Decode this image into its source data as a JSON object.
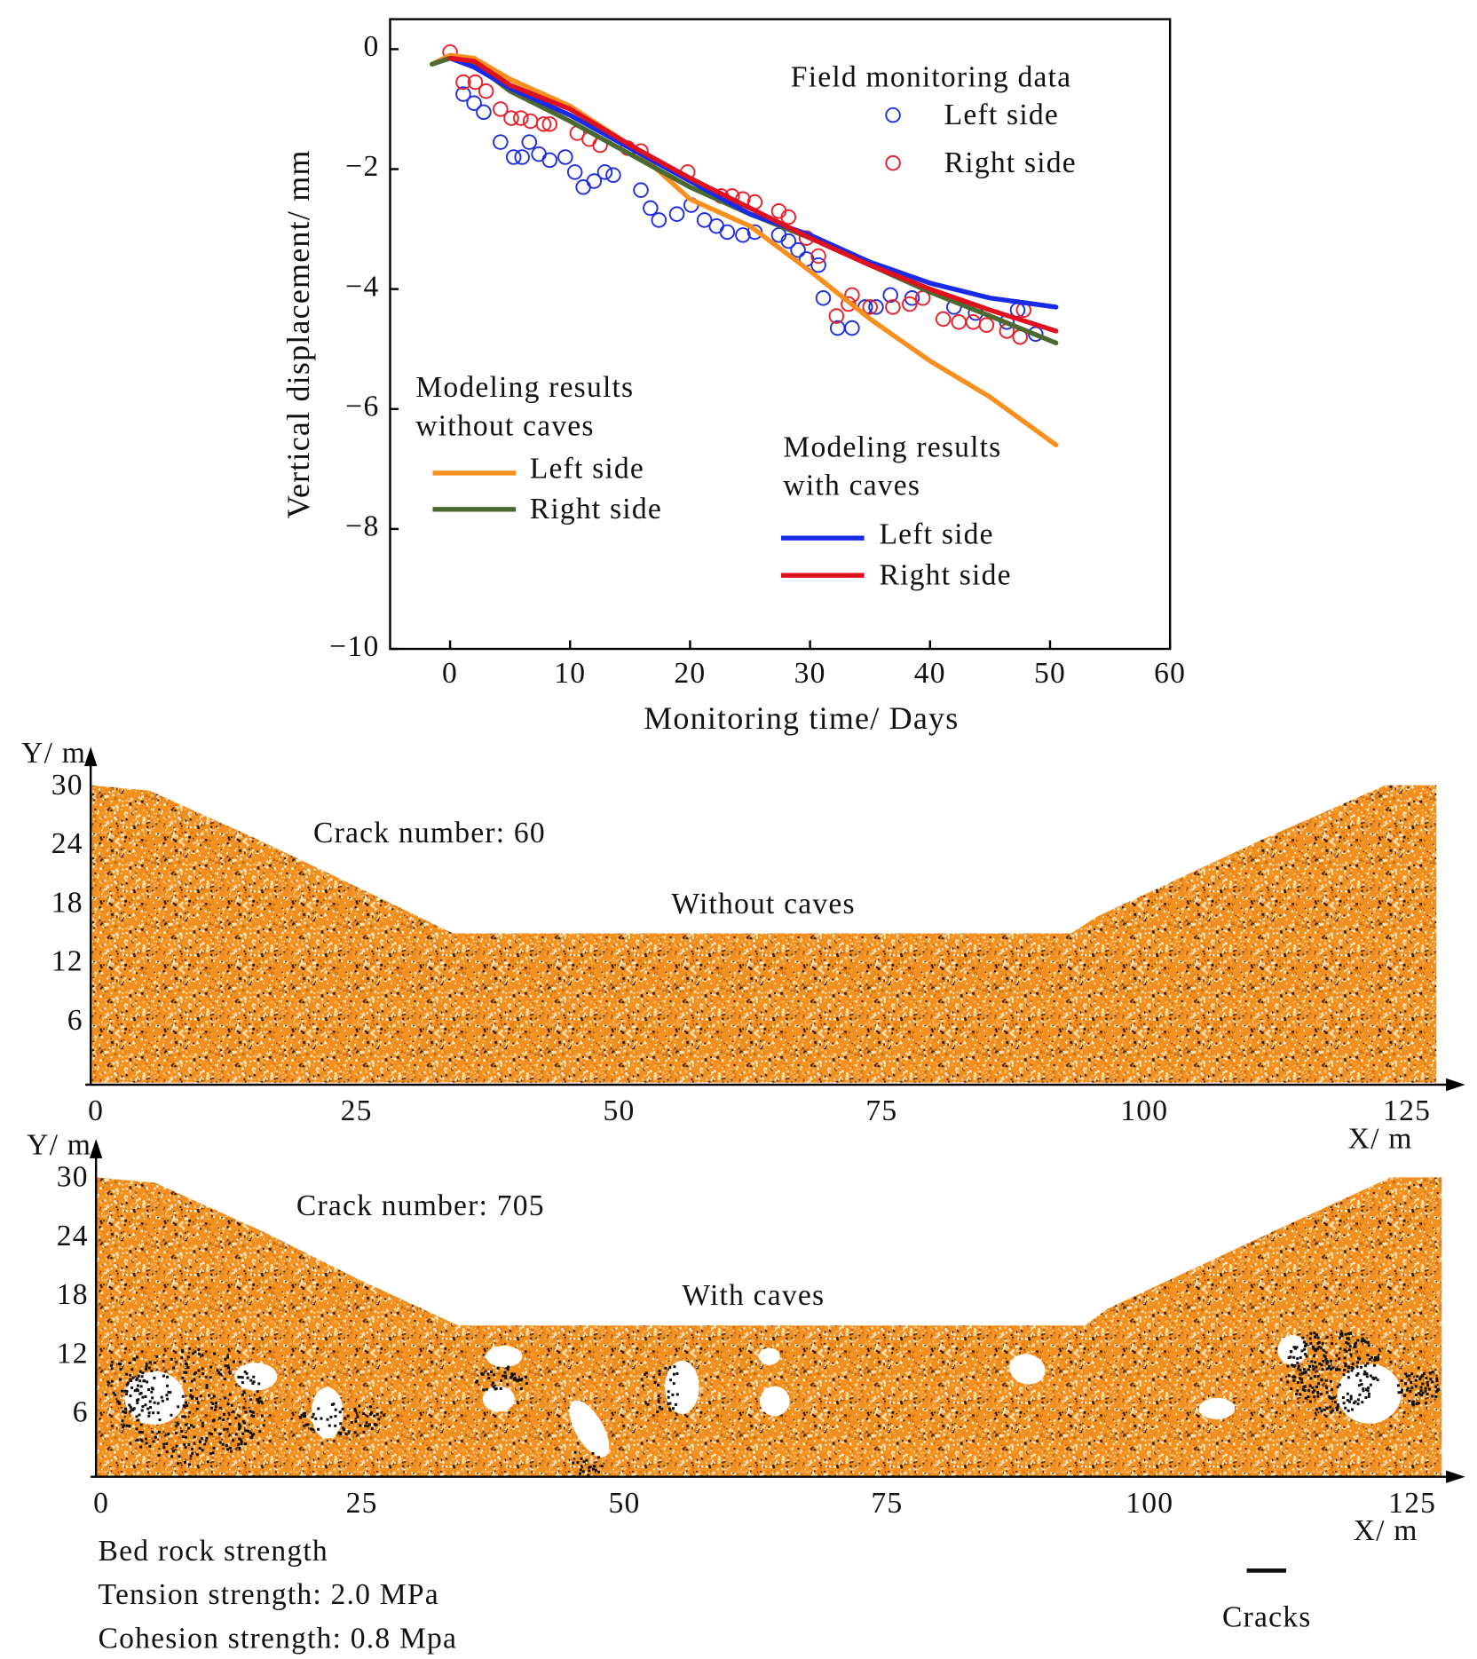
{
  "chart_data": [
    {
      "type": "line",
      "xlabel": "Monitoring time/ Days",
      "ylabel": "Vertical displacement/ mm",
      "xlim": [
        -5,
        60
      ],
      "xticks": [
        0,
        10,
        20,
        30,
        40,
        50,
        60
      ],
      "ylim": [
        -10,
        0.5
      ],
      "yticks": [
        {
          "value": -10,
          "label": "−10"
        },
        {
          "value": -8,
          "label": "−8"
        },
        {
          "value": -6,
          "label": "−6"
        },
        {
          "value": -4,
          "label": "−4"
        },
        {
          "value": -2,
          "label": "−2"
        },
        0
      ],
      "x": [
        -1.5,
        0,
        2,
        5,
        10,
        15,
        20,
        25,
        30,
        35,
        40,
        45,
        50.5
      ],
      "groups": [
        {
          "title": [
            "Field monitoring data"
          ],
          "series": [
            {
              "name": "Left side",
              "kind": "scatter",
              "color": "#1f2fe0",
              "x": [
                1.1,
                2,
                2.8,
                4.2,
                5.3,
                6,
                6.6,
                7.4,
                8.3,
                9.6,
                10.4,
                11.1,
                12,
                12.9,
                13.6,
                15.9,
                16.7,
                17.4,
                18.9,
                20.1,
                21.2,
                22.2,
                23.1,
                24.4,
                25.4,
                27.4,
                28.2,
                29,
                29.7,
                30.7,
                31.1,
                32.3,
                33.5,
                34.6,
                35.5,
                36.7,
                38.5,
                42,
                43.8,
                46.4,
                47.3,
                48.8
              ],
              "values": [
                -0.75,
                -0.9,
                -1.05,
                -1.55,
                -1.8,
                -1.8,
                -1.55,
                -1.75,
                -1.85,
                -1.8,
                -2.05,
                -2.3,
                -2.2,
                -2.05,
                -2.1,
                -2.35,
                -2.65,
                -2.85,
                -2.75,
                -2.6,
                -2.85,
                -2.95,
                -3.05,
                -3.1,
                -3.05,
                -3.1,
                -3.2,
                -3.35,
                -3.5,
                -3.6,
                -4.15,
                -4.65,
                -4.65,
                -4.3,
                -4.3,
                -4.1,
                -4.15,
                -4.3,
                -4.4,
                -4.55,
                -4.35,
                -4.75
              ]
            },
            {
              "name": "Right side",
              "kind": "scatter",
              "color": "#e8202a",
              "x": [
                0,
                1.1,
                2.1,
                3,
                4.2,
                5.1,
                5.9,
                6.7,
                7.8,
                8.3,
                10.6,
                11.6,
                12.5,
                14.8,
                15.9,
                19.8,
                22.6,
                23.5,
                24.4,
                25.4,
                27.4,
                28.2,
                29.7,
                30.7,
                32.2,
                33.2,
                33.5,
                35,
                36.9,
                38.3,
                39.4,
                41.1,
                42.4,
                43.6,
                44.7,
                46.4,
                47.5,
                47.8
              ],
              "values": [
                -0.05,
                -0.55,
                -0.55,
                -0.7,
                -1.0,
                -1.15,
                -1.15,
                -1.2,
                -1.25,
                -1.25,
                -1.4,
                -1.5,
                -1.6,
                -1.65,
                -1.7,
                -2.05,
                -2.45,
                -2.45,
                -2.5,
                -2.55,
                -2.7,
                -2.8,
                -3.15,
                -3.45,
                -4.45,
                -4.25,
                -4.1,
                -4.3,
                -4.3,
                -4.25,
                -4.15,
                -4.5,
                -4.55,
                -4.55,
                -4.6,
                -4.7,
                -4.8,
                -4.35
              ]
            }
          ]
        },
        {
          "title": [
            "Modeling results",
            "without caves"
          ],
          "series": [
            {
              "name": "Left side",
              "kind": "line",
              "color": "#f7901e",
              "values": [
                -0.25,
                -0.1,
                -0.15,
                -0.5,
                -0.95,
                -1.6,
                -2.5,
                -2.95,
                -3.7,
                -4.5,
                -5.2,
                -5.8,
                -6.6
              ]
            },
            {
              "name": "Right side",
              "kind": "line",
              "color": "#4a6a30",
              "values": [
                -0.25,
                -0.15,
                -0.25,
                -0.7,
                -1.2,
                -1.75,
                -2.3,
                -2.75,
                -3.15,
                -3.6,
                -4.05,
                -4.45,
                -4.9
              ]
            }
          ]
        },
        {
          "title": [
            "Modeling results",
            "with caves"
          ],
          "series": [
            {
              "name": "Left side",
              "kind": "line",
              "color": "#1a2be8",
              "values": [
                null,
                -0.15,
                -0.3,
                -0.65,
                -1.1,
                -1.65,
                -2.2,
                -2.75,
                -3.1,
                -3.55,
                -3.9,
                -4.15,
                -4.3
              ]
            },
            {
              "name": "Right side",
              "kind": "line",
              "color": "#e0101e",
              "values": [
                null,
                -0.15,
                -0.2,
                -0.6,
                -1.0,
                -1.6,
                -2.15,
                -2.65,
                -3.15,
                -3.6,
                -4.0,
                -4.35,
                -4.7
              ]
            }
          ]
        }
      ]
    },
    {
      "type": "particle-model",
      "xlabel": "X/ m",
      "ylabel": "Y/ m",
      "xlim": [
        0,
        128
      ],
      "xticks": [
        0,
        25,
        50,
        75,
        100,
        125
      ],
      "ylim": [
        0,
        30
      ],
      "yticks": [
        6,
        12,
        18,
        24,
        30
      ],
      "annotations": [
        "Crack number: 60",
        "Without caves"
      ]
    },
    {
      "type": "particle-model",
      "xlabel": "X/ m",
      "ylabel": "Y/ m",
      "xlim": [
        0,
        128
      ],
      "xticks": [
        0,
        25,
        50,
        75,
        100,
        125
      ],
      "ylim": [
        0,
        30
      ],
      "yticks": [
        6,
        12,
        18,
        24,
        30
      ],
      "annotations": [
        "Crack number: 705",
        "With caves"
      ],
      "notes": [
        "Bed rock strength",
        "Tension strength: 2.0 MPa",
        "Cohesion strength: 0.8 Mpa"
      ],
      "legend": "Cracks"
    }
  ]
}
